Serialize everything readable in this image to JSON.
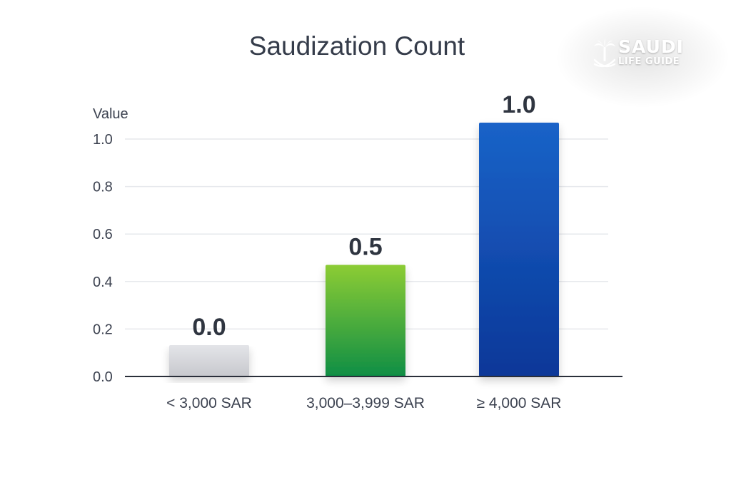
{
  "chart_data": {
    "type": "bar",
    "title": "Saudization Count",
    "ylabel": "Value",
    "xlabel": "",
    "categories": [
      "< 3,000 SAR",
      "3,000–3,999 SAR",
      "≥ 4,000 SAR"
    ],
    "values": [
      0.0,
      0.5,
      1.0
    ],
    "data_labels": [
      "0.0",
      "0.5",
      "1.0"
    ],
    "y_ticks": [
      "0.0",
      "0.2",
      "0.4",
      "0.6",
      "0.8",
      "1.0"
    ],
    "ylim": [
      0,
      1.0
    ],
    "grid": true,
    "legend": "none",
    "colors": {
      "bar_1": [
        "#e3e4e8",
        "#c7c8cd"
      ],
      "bar_2": [
        "#8ccc34",
        "#0f8e45"
      ],
      "bar_3": [
        "#1a63c8",
        "#0a3798"
      ],
      "title": "#353c4a",
      "axis_text": "#3c4250",
      "grid": "#e6e8ec",
      "axis_line": "#2a2f3a"
    }
  },
  "watermark": {
    "line1": "SAUDI",
    "line2": "LIFE GUIDE",
    "icon": "palm-and-swords-icon"
  }
}
